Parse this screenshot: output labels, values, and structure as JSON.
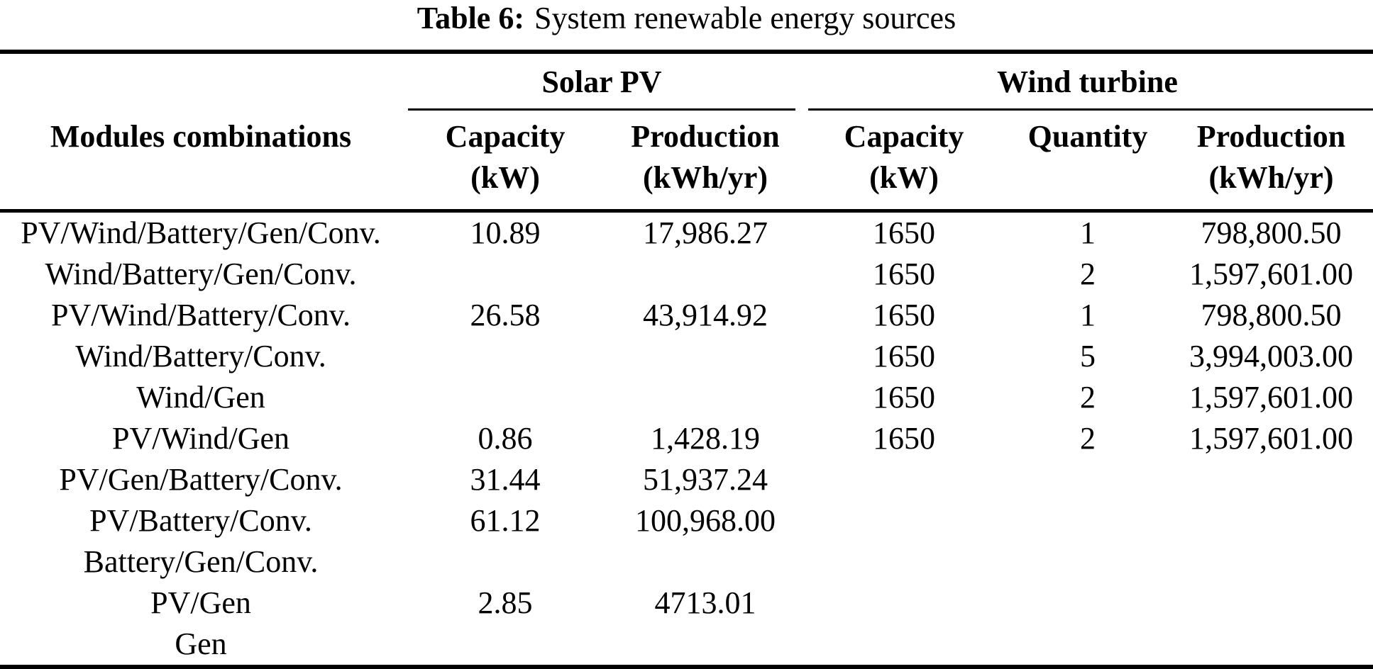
{
  "caption": {
    "label": "Table 6:",
    "text": "System renewable energy sources"
  },
  "colors": {
    "text": "#000000",
    "background": "#ffffff",
    "rule": "#000000"
  },
  "table": {
    "col_groups": [
      {
        "label": "",
        "span": 1
      },
      {
        "label": "Solar PV",
        "span": 2
      },
      {
        "label": "Wind turbine",
        "span": 3
      }
    ],
    "columns": [
      {
        "header": "Modules combinations",
        "sub": ""
      },
      {
        "header": "Capacity",
        "sub": "(kW)"
      },
      {
        "header": "Production",
        "sub": "(kWh/yr)"
      },
      {
        "header": "Capacity",
        "sub": "(kW)"
      },
      {
        "header": "Quantity",
        "sub": ""
      },
      {
        "header": "Production",
        "sub": "(kWh/yr)"
      }
    ],
    "rows": [
      [
        "PV/Wind/Battery/Gen/Conv.",
        "10.89",
        "17,986.27",
        "1650",
        "1",
        "798,800.50"
      ],
      [
        "Wind/Battery/Gen/Conv.",
        "",
        "",
        "1650",
        "2",
        "1,597,601.00"
      ],
      [
        "PV/Wind/Battery/Conv.",
        "26.58",
        "43,914.92",
        "1650",
        "1",
        "798,800.50"
      ],
      [
        "Wind/Battery/Conv.",
        "",
        "",
        "1650",
        "5",
        "3,994,003.00"
      ],
      [
        "Wind/Gen",
        "",
        "",
        "1650",
        "2",
        "1,597,601.00"
      ],
      [
        "PV/Wind/Gen",
        "0.86",
        "1,428.19",
        "1650",
        "2",
        "1,597,601.00"
      ],
      [
        "PV/Gen/Battery/Conv.",
        "31.44",
        "51,937.24",
        "",
        "",
        ""
      ],
      [
        "PV/Battery/Conv.",
        "61.12",
        "100,968.00",
        "",
        "",
        ""
      ],
      [
        "Battery/Gen/Conv.",
        "",
        "",
        "",
        "",
        ""
      ],
      [
        "PV/Gen",
        "2.85",
        "4713.01",
        "",
        "",
        ""
      ],
      [
        "Gen",
        "",
        "",
        "",
        "",
        ""
      ]
    ]
  }
}
